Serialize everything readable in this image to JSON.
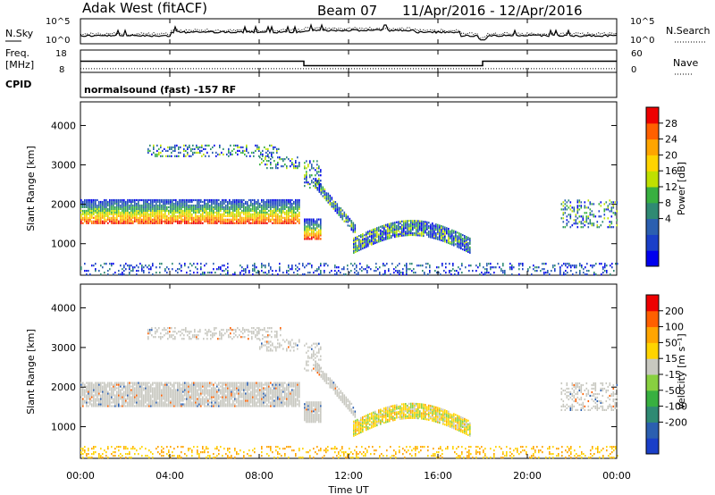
{
  "header": {
    "station": "Adak West (fitACF)",
    "beam": "Beam 07",
    "date_range": "11/Apr/2016 - 12/Apr/2016"
  },
  "cpid_text": "normalsound (fast) -157 RF",
  "chart_data": [
    {
      "type": "line",
      "panel": "N.Sky / N.Search",
      "ylabel_left": "N.Sky",
      "ylabel_right": "N.Search",
      "left_ticks": [
        "10^5",
        "10^0"
      ],
      "right_ticks": [
        "10^5",
        "10^0"
      ],
      "x_range": [
        "00:00",
        "24:00"
      ],
      "series": [
        {
          "name": "N.Sky",
          "style": "solid"
        },
        {
          "name": "N.Search",
          "style": "dotted"
        }
      ]
    },
    {
      "type": "line",
      "panel": "Freq. / Nave",
      "ylabel_left": "Freq. [MHz]",
      "ylabel_right": "Nave",
      "left_ticks": [
        "18",
        "8"
      ],
      "right_ticks": [
        "60",
        "0"
      ],
      "freq_x_hours": [
        0,
        10,
        10,
        18,
        18,
        24
      ],
      "freq_y_mhz": [
        13,
        13,
        11,
        11,
        13,
        13
      ],
      "nave_x_hours": [
        0,
        24
      ],
      "nave_y": [
        10,
        10
      ],
      "series": [
        {
          "name": "Freq.",
          "style": "solid"
        },
        {
          "name": "Nave",
          "style": "dotted"
        }
      ]
    },
    {
      "type": "heatmap",
      "panel": "CPID",
      "ylabel": "CPID"
    },
    {
      "type": "heatmap",
      "panel": "power",
      "ylabel": "Slant Range [km]",
      "yticks": [
        1000,
        2000,
        3000,
        4000
      ],
      "ylim": [
        200,
        4600
      ],
      "xlim_hours": [
        0,
        24
      ],
      "colorbar_label": "Power [dB]",
      "colorbar_ticks": [
        "28",
        "24",
        "20",
        "16",
        "12",
        "8",
        "4"
      ],
      "colorbar_colors": [
        "#0000ee",
        "#1a3fc8",
        "#2b5fb0",
        "#2f8a73",
        "#38b040",
        "#bfe000",
        "#ffd400",
        "#ffa500",
        "#ff6000",
        "#ee0000"
      ]
    },
    {
      "type": "heatmap",
      "panel": "velocity",
      "ylabel": "Slant Range [km]",
      "yticks": [
        1000,
        2000,
        3000,
        4000
      ],
      "ylim": [
        200,
        4600
      ],
      "xlim_hours": [
        0,
        24
      ],
      "colorbar_label": "Velocity [m s⁻¹]",
      "colorbar_ticks": [
        "200",
        "100",
        "50",
        "15",
        "-15",
        "-50",
        "-100",
        "-200"
      ],
      "colorbar_colors": [
        "#1a3fc8",
        "#2b5fb0",
        "#2f8a73",
        "#38b040",
        "#88d040",
        "#c8c8c0",
        "#ffd400",
        "#ffa500",
        "#ff6000",
        "#ee0000"
      ]
    }
  ],
  "x_axis": {
    "tick_labels": [
      "00:00",
      "04:00",
      "08:00",
      "12:00",
      "16:00",
      "20:00",
      "00:00"
    ],
    "title": "Time UT"
  },
  "echo_regions": [
    {
      "h0": 0.0,
      "h1": 9.8,
      "r0": 1500,
      "r1": 2100,
      "kind": "band"
    },
    {
      "h0": 3.0,
      "h1": 9.0,
      "r0": 3200,
      "r1": 3500,
      "kind": "sparse"
    },
    {
      "h0": 8.0,
      "h1": 9.8,
      "r0": 2900,
      "r1": 3200,
      "kind": "sparse"
    },
    {
      "h0": 10.0,
      "h1": 10.8,
      "r0": 1100,
      "r1": 1600,
      "kind": "band"
    },
    {
      "h0": 10.0,
      "h1": 10.8,
      "r0": 2400,
      "r1": 3100,
      "kind": "sparse"
    },
    {
      "h0": 10.5,
      "h1": 12.3,
      "r0": 1400,
      "r1": 2500,
      "kind": "diag"
    },
    {
      "h0": 12.2,
      "h1": 17.4,
      "r0": 850,
      "r1": 1650,
      "kind": "arc"
    },
    {
      "h0": 21.5,
      "h1": 24.0,
      "r0": 1400,
      "r1": 2100,
      "kind": "sparse"
    },
    {
      "h0": 0.0,
      "h1": 24.0,
      "r0": 200,
      "r1": 500,
      "kind": "ground"
    }
  ]
}
